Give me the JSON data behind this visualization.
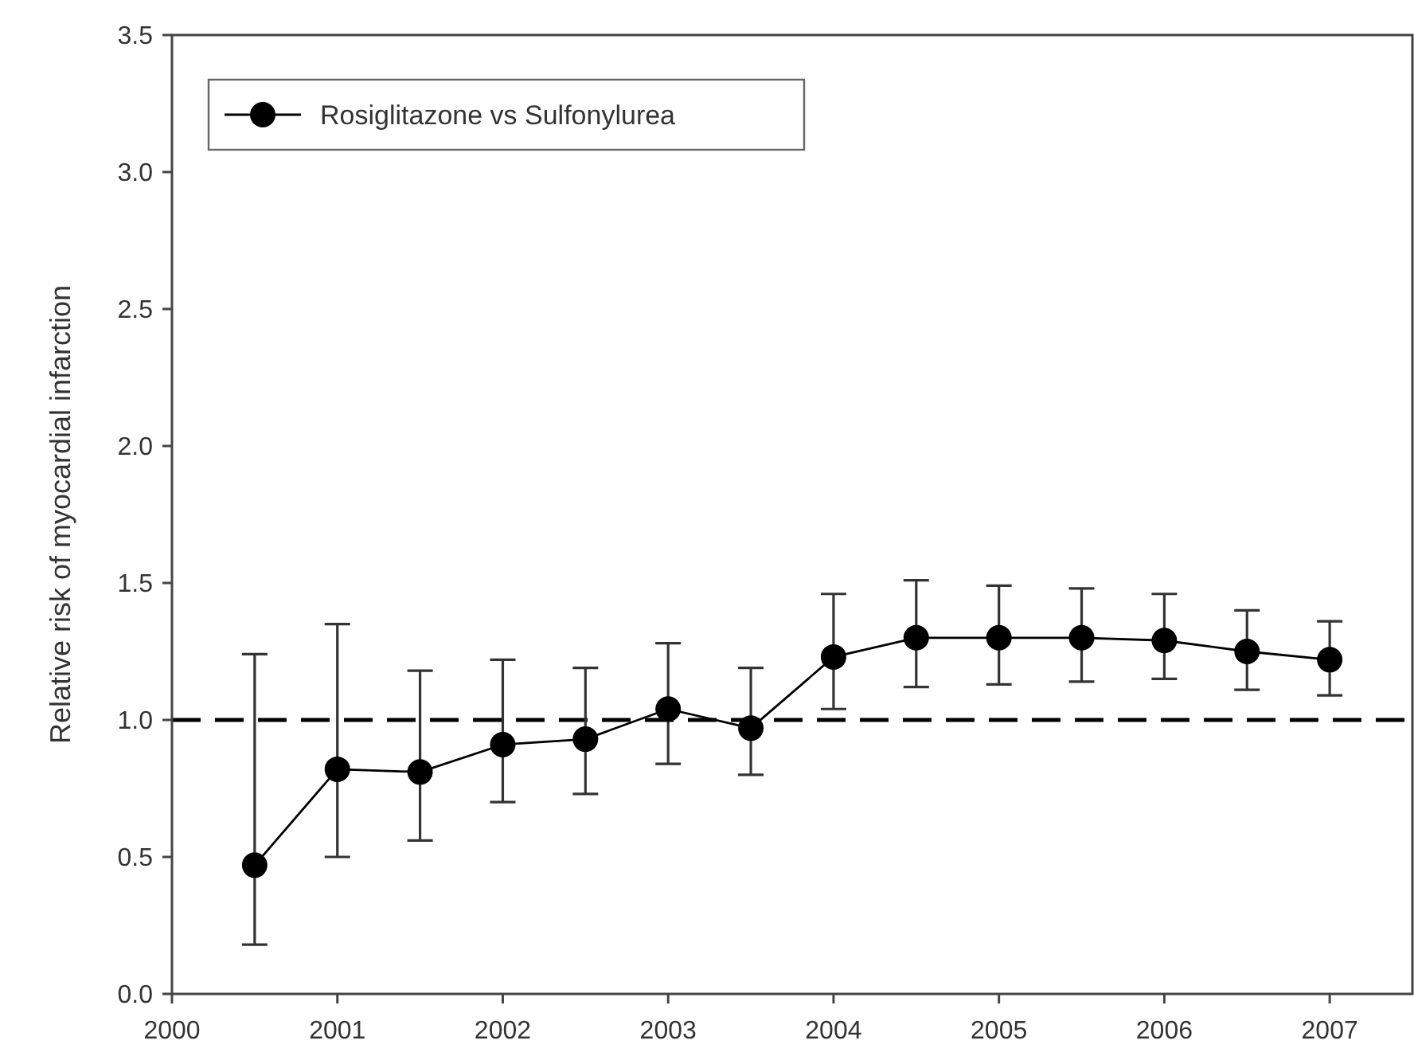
{
  "chart_data": {
    "type": "line",
    "ylabel": "Relative risk of myocardial infarction",
    "x": [
      2000.5,
      2001,
      2001.5,
      2002,
      2002.5,
      2003,
      2003.5,
      2004,
      2004.5,
      2005,
      2005.5,
      2006,
      2006.5,
      2007
    ],
    "series": [
      {
        "name": "Rosiglitazone vs Sulfonylurea",
        "color": "#000000",
        "values": [
          0.47,
          0.82,
          0.81,
          0.91,
          0.93,
          1.04,
          0.97,
          1.23,
          1.3,
          1.3,
          1.3,
          1.29,
          1.25,
          1.22
        ],
        "errors": [
          [
            0.18,
            1.24
          ],
          [
            0.5,
            1.35
          ],
          [
            0.56,
            1.18
          ],
          [
            0.7,
            1.22
          ],
          [
            0.73,
            1.19
          ],
          [
            0.84,
            1.28
          ],
          [
            0.8,
            1.19
          ],
          [
            1.04,
            1.46
          ],
          [
            1.12,
            1.51
          ],
          [
            1.13,
            1.49
          ],
          [
            1.14,
            1.48
          ],
          [
            1.15,
            1.46
          ],
          [
            1.11,
            1.4
          ],
          [
            1.09,
            1.36
          ]
        ]
      }
    ],
    "xlim": [
      2000,
      2007.5
    ],
    "xticks": [
      2000,
      2001,
      2002,
      2003,
      2004,
      2005,
      2006,
      2007
    ],
    "ylim": [
      0,
      3.5
    ],
    "yticks": [
      {
        "value": 0,
        "label": "0.0"
      },
      {
        "value": 0.5,
        "label": "0.5"
      },
      {
        "value": 1,
        "label": "1.0"
      },
      {
        "value": 1.5,
        "label": "1.5"
      },
      {
        "value": 2,
        "label": "2.0"
      },
      {
        "value": 2.5,
        "label": "2.5"
      },
      {
        "value": 3,
        "label": "3.0"
      },
      {
        "value": 3.5,
        "label": "3.5"
      }
    ],
    "ref_lines": [
      {
        "axis": "y",
        "value": 1,
        "color": "#000000",
        "line_style": "dashed"
      }
    ],
    "legend": "top left",
    "marker": "circle",
    "line_style": "solid",
    "grid": false
  }
}
